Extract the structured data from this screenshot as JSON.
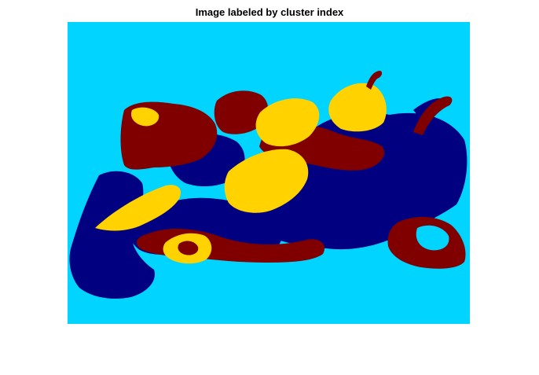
{
  "figure": {
    "title": "Image labeled by cluster index"
  },
  "image": {
    "description_hidden": "",
    "clusters": [
      {
        "index": 1,
        "color": "#000080"
      },
      {
        "index": 2,
        "color": "#00D4FF"
      },
      {
        "index": 3,
        "color": "#FFD200"
      },
      {
        "index": 4,
        "color": "#800000"
      }
    ]
  }
}
